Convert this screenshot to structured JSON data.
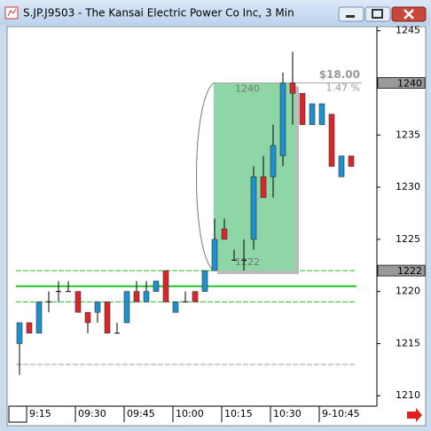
{
  "window": {
    "title": "S.JP.J9503 - The Kansai Electric Power Co Inc, 3 Min"
  },
  "chart_data": {
    "type": "candlestick",
    "categories": [
      "9:15",
      null,
      null,
      null,
      null,
      "09:30",
      null,
      null,
      null,
      null,
      "09:45",
      null,
      null,
      null,
      null,
      "10:00",
      null,
      null,
      null,
      null,
      "10:15",
      null,
      null,
      null,
      null,
      "10:30",
      null,
      null,
      null,
      null,
      "9-10:45",
      null,
      null,
      null,
      null
    ],
    "open": [
      1215,
      1217,
      1216,
      1219,
      1220,
      1220,
      1220,
      1218,
      1218,
      1219,
      1216,
      1217,
      1220,
      1219,
      1220,
      1222,
      1218,
      1219,
      1220,
      1220,
      1222,
      1226,
      1223,
      1223,
      1225,
      1231,
      1231,
      1233,
      1240,
      1239,
      1236,
      1236,
      1237,
      1231,
      1233
    ],
    "high": [
      1217,
      1217,
      1219,
      1220,
      1221,
      1221,
      1220,
      1218,
      1219,
      1219,
      1217,
      1220,
      1221,
      1221,
      1221,
      1222,
      1219,
      1220,
      1220,
      1222,
      1227,
      1227,
      1224,
      1225,
      1232,
      1233,
      1236,
      1241,
      1243,
      1239,
      1238,
      1238,
      1237,
      1233,
      1233
    ],
    "low": [
      1212,
      1216,
      1216,
      1218,
      1219,
      1220,
      1218,
      1216,
      1217,
      1216,
      1216,
      1217,
      1219,
      1219,
      1220,
      1219,
      1218,
      1219,
      1219,
      1220,
      1222,
      1225,
      1223,
      1222,
      1224,
      1229,
      1229,
      1232,
      1236,
      1236,
      1236,
      1236,
      1232,
      1231,
      1232
    ],
    "close": [
      1217,
      1216,
      1219,
      1219,
      1220,
      1220,
      1218,
      1217,
      1219,
      1216,
      1216,
      1220,
      1219,
      1220,
      1221,
      1219,
      1219,
      1219,
      1219,
      1222,
      1225,
      1225,
      1223,
      1223,
      1231,
      1229,
      1234,
      1240,
      1239,
      1236,
      1238,
      1238,
      1232,
      1233,
      1232
    ],
    "up_color": "#1e90d0",
    "down_color": "#d9262b",
    "ylim": [
      1209,
      1245.4
    ],
    "yticks": [
      1210,
      1215,
      1220,
      1225,
      1230,
      1235,
      1240,
      1245
    ],
    "price_tags": [
      1240,
      1222
    ],
    "levels": [
      {
        "value": 1220.5,
        "style": "solid",
        "color": "#22c02a"
      },
      {
        "value": 1222,
        "style": "dashed",
        "color": "#22c02a"
      },
      {
        "value": 1219,
        "style": "dashed",
        "color": "#22c02a"
      },
      {
        "value": 1213,
        "style": "dashed",
        "color": "#999999"
      }
    ],
    "measure": {
      "from": 1222,
      "to": 1240,
      "from_index": 20,
      "to_index": 28,
      "color": "#8fd6a6",
      "change_label": "$18.00",
      "percent_label": "1.47 %"
    }
  }
}
